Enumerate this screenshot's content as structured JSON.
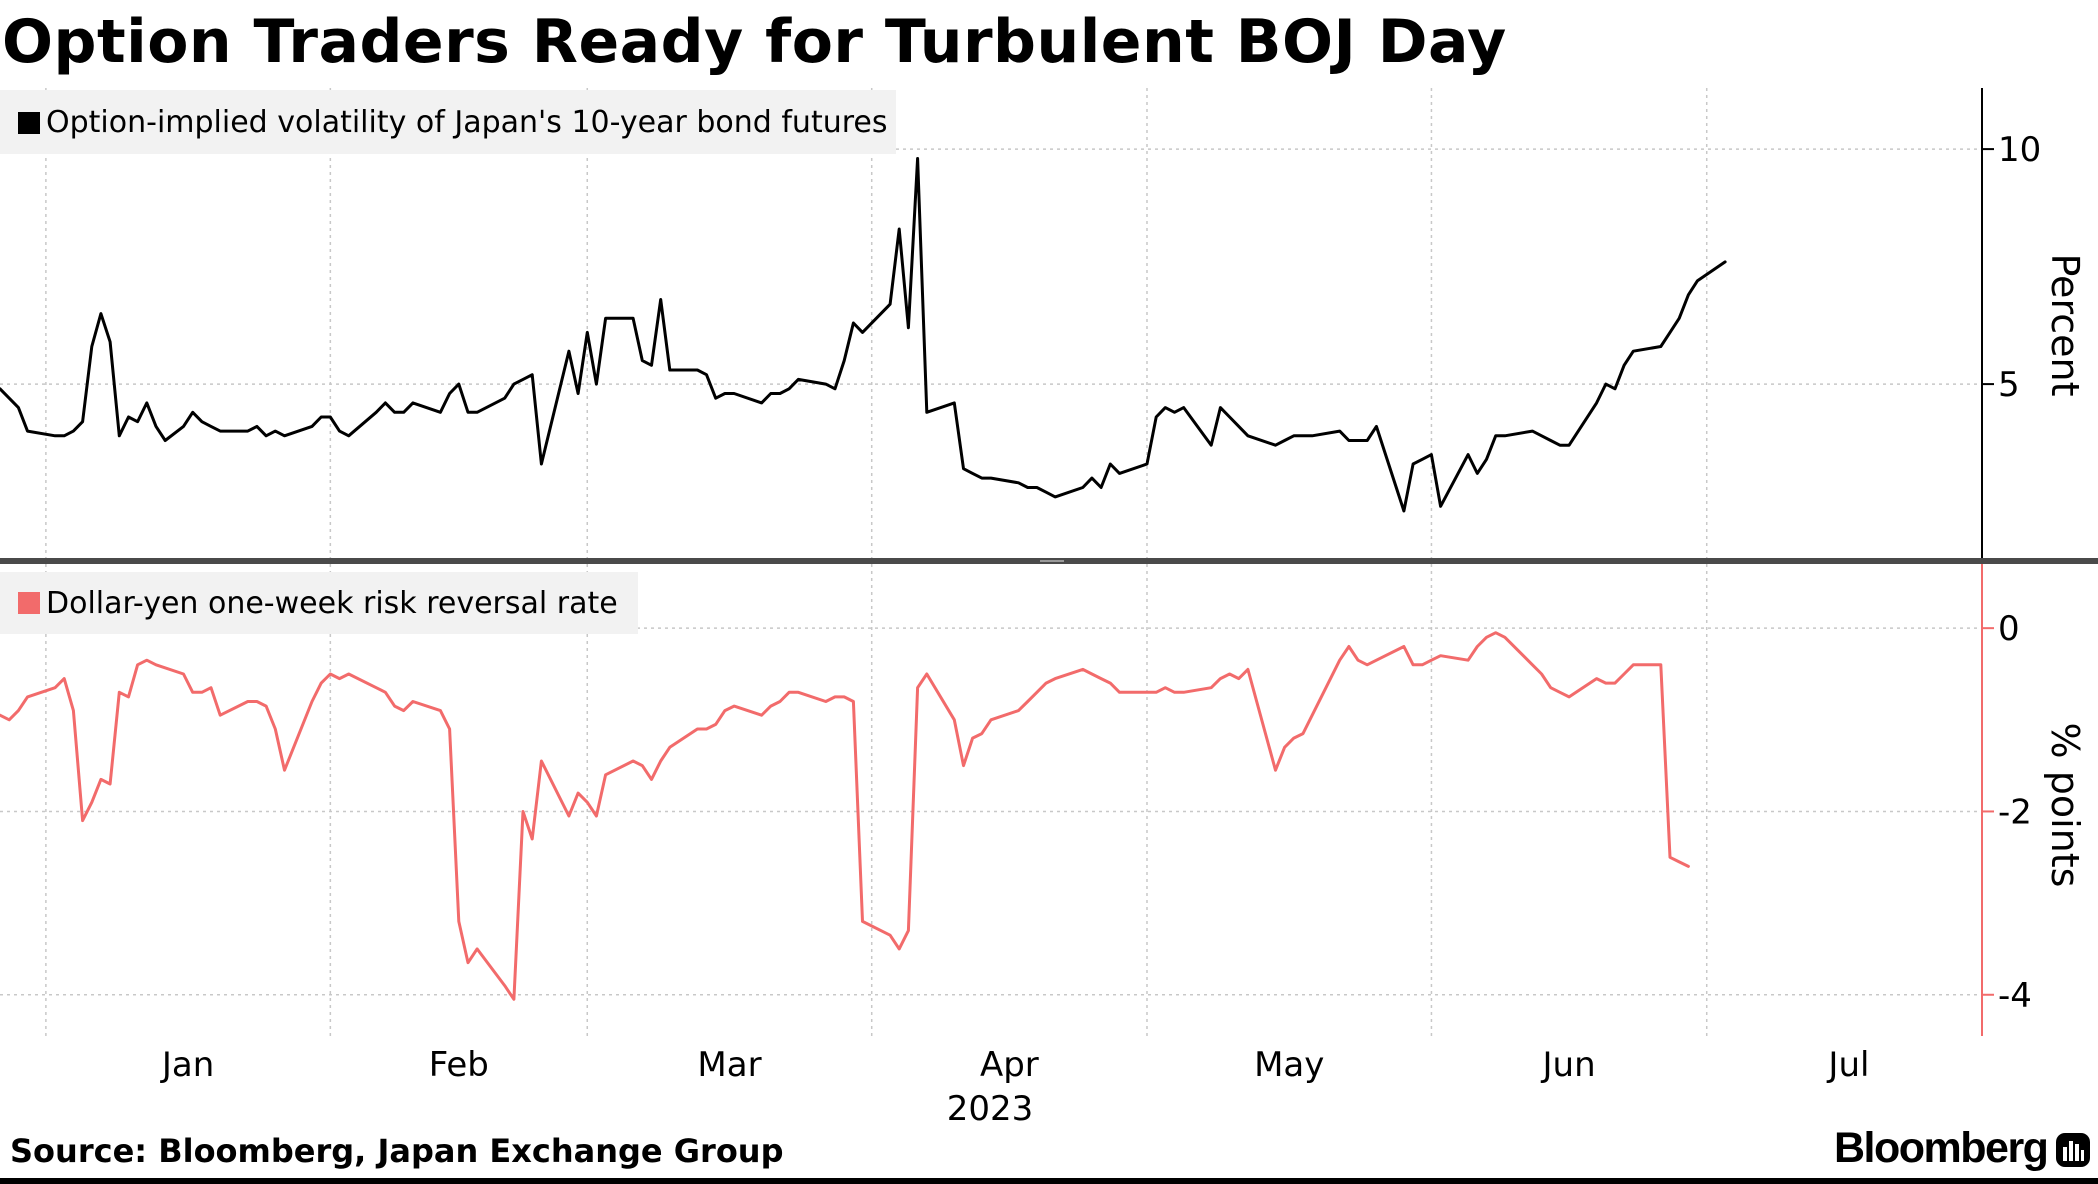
{
  "title": "Option Traders Ready for Turbulent BOJ Day",
  "source": "Source: Bloomberg, Japan Exchange Group",
  "brand": "Bloomberg",
  "colors": {
    "series1": "#000000",
    "series2": "#f26b6b",
    "grid": "#c8c8c8",
    "legend_bg": "#f2f2f2"
  },
  "chart_data": [
    {
      "type": "line",
      "series": [
        {
          "name": "Option-implied volatility of Japan's 10-year bond futures",
          "color": "#000000"
        }
      ],
      "ylabel": "Percent",
      "y_ticks": [
        5,
        10
      ],
      "ylim": [
        1.3,
        11.3
      ],
      "x_ticks": [
        "Jan",
        "Feb",
        "Mar",
        "Apr",
        "May",
        "Jun",
        "Jul"
      ],
      "x_year": "2023",
      "xlim": [
        "2022-12-27",
        "2023-07-31"
      ],
      "grid": true,
      "legend": "top-left",
      "points": [
        [
          "2022-12-27",
          4.9
        ],
        [
          "2022-12-28",
          4.7
        ],
        [
          "2022-12-29",
          4.5
        ],
        [
          "2022-12-30",
          4.0
        ],
        [
          "2023-01-02",
          3.9
        ],
        [
          "2023-01-03",
          3.9
        ],
        [
          "2023-01-04",
          4.0
        ],
        [
          "2023-01-05",
          4.2
        ],
        [
          "2023-01-06",
          5.8
        ],
        [
          "2023-01-07",
          6.5
        ],
        [
          "2023-01-08",
          5.9
        ],
        [
          "2023-01-09",
          3.9
        ],
        [
          "2023-01-10",
          4.3
        ],
        [
          "2023-01-11",
          4.2
        ],
        [
          "2023-01-12",
          4.6
        ],
        [
          "2023-01-13",
          4.1
        ],
        [
          "2023-01-14",
          3.8
        ],
        [
          "2023-01-16",
          4.1
        ],
        [
          "2023-01-17",
          4.4
        ],
        [
          "2023-01-18",
          4.2
        ],
        [
          "2023-01-19",
          4.1
        ],
        [
          "2023-01-20",
          4.0
        ],
        [
          "2023-01-23",
          4.0
        ],
        [
          "2023-01-24",
          4.1
        ],
        [
          "2023-01-25",
          3.9
        ],
        [
          "2023-01-26",
          4.0
        ],
        [
          "2023-01-27",
          3.9
        ],
        [
          "2023-01-30",
          4.1
        ],
        [
          "2023-01-31",
          4.3
        ],
        [
          "2023-02-01",
          4.3
        ],
        [
          "2023-02-02",
          4.0
        ],
        [
          "2023-02-03",
          3.9
        ],
        [
          "2023-02-06",
          4.4
        ],
        [
          "2023-02-07",
          4.6
        ],
        [
          "2023-02-08",
          4.4
        ],
        [
          "2023-02-09",
          4.4
        ],
        [
          "2023-02-10",
          4.6
        ],
        [
          "2023-02-13",
          4.4
        ],
        [
          "2023-02-14",
          4.8
        ],
        [
          "2023-02-15",
          5.0
        ],
        [
          "2023-02-16",
          4.4
        ],
        [
          "2023-02-17",
          4.4
        ],
        [
          "2023-02-20",
          4.7
        ],
        [
          "2023-02-21",
          5.0
        ],
        [
          "2023-02-22",
          5.1
        ],
        [
          "2023-02-23",
          5.2
        ],
        [
          "2023-02-24",
          3.3
        ],
        [
          "2023-02-27",
          5.7
        ],
        [
          "2023-02-28",
          4.8
        ],
        [
          "2023-03-01",
          6.1
        ],
        [
          "2023-03-02",
          5.0
        ],
        [
          "2023-03-03",
          6.4
        ],
        [
          "2023-03-06",
          6.4
        ],
        [
          "2023-03-07",
          5.5
        ],
        [
          "2023-03-08",
          5.4
        ],
        [
          "2023-03-09",
          6.8
        ],
        [
          "2023-03-10",
          5.3
        ],
        [
          "2023-03-13",
          5.3
        ],
        [
          "2023-03-14",
          5.2
        ],
        [
          "2023-03-15",
          4.7
        ],
        [
          "2023-03-16",
          4.8
        ],
        [
          "2023-03-17",
          4.8
        ],
        [
          "2023-03-20",
          4.6
        ],
        [
          "2023-03-21",
          4.8
        ],
        [
          "2023-03-22",
          4.8
        ],
        [
          "2023-03-23",
          4.9
        ],
        [
          "2023-03-24",
          5.1
        ],
        [
          "2023-03-27",
          5.0
        ],
        [
          "2023-03-28",
          4.9
        ],
        [
          "2023-03-29",
          5.5
        ],
        [
          "2023-03-30",
          6.3
        ],
        [
          "2023-03-31",
          6.1
        ],
        [
          "2023-04-03",
          6.7
        ],
        [
          "2023-04-04",
          8.3
        ],
        [
          "2023-04-05",
          6.2
        ],
        [
          "2023-04-06",
          9.8
        ],
        [
          "2023-04-07",
          4.4
        ],
        [
          "2023-04-10",
          4.6
        ],
        [
          "2023-04-11",
          3.2
        ],
        [
          "2023-04-12",
          3.1
        ],
        [
          "2023-04-13",
          3.0
        ],
        [
          "2023-04-14",
          3.0
        ],
        [
          "2023-04-17",
          2.9
        ],
        [
          "2023-04-18",
          2.8
        ],
        [
          "2023-04-19",
          2.8
        ],
        [
          "2023-04-20",
          2.7
        ],
        [
          "2023-04-21",
          2.6
        ],
        [
          "2023-04-24",
          2.8
        ],
        [
          "2023-04-25",
          3.0
        ],
        [
          "2023-04-26",
          2.8
        ],
        [
          "2023-04-27",
          3.3
        ],
        [
          "2023-04-28",
          3.1
        ],
        [
          "2023-05-01",
          3.3
        ],
        [
          "2023-05-02",
          4.3
        ],
        [
          "2023-05-03",
          4.5
        ],
        [
          "2023-05-04",
          4.4
        ],
        [
          "2023-05-05",
          4.5
        ],
        [
          "2023-05-08",
          3.7
        ],
        [
          "2023-05-09",
          4.5
        ],
        [
          "2023-05-10",
          4.3
        ],
        [
          "2023-05-11",
          4.1
        ],
        [
          "2023-05-12",
          3.9
        ],
        [
          "2023-05-15",
          3.7
        ],
        [
          "2023-05-16",
          3.8
        ],
        [
          "2023-05-17",
          3.9
        ],
        [
          "2023-05-18",
          3.9
        ],
        [
          "2023-05-19",
          3.9
        ],
        [
          "2023-05-22",
          4.0
        ],
        [
          "2023-05-23",
          3.8
        ],
        [
          "2023-05-24",
          3.8
        ],
        [
          "2023-05-25",
          3.8
        ],
        [
          "2023-05-26",
          4.1
        ],
        [
          "2023-05-29",
          2.3
        ],
        [
          "2023-05-30",
          3.3
        ],
        [
          "2023-05-31",
          3.4
        ],
        [
          "2023-06-01",
          3.5
        ],
        [
          "2023-06-02",
          2.4
        ],
        [
          "2023-06-05",
          3.5
        ],
        [
          "2023-06-06",
          3.1
        ],
        [
          "2023-06-07",
          3.4
        ],
        [
          "2023-06-08",
          3.9
        ],
        [
          "2023-06-09",
          3.9
        ],
        [
          "2023-06-12",
          4.0
        ],
        [
          "2023-06-13",
          3.9
        ],
        [
          "2023-06-14",
          3.8
        ],
        [
          "2023-06-15",
          3.7
        ],
        [
          "2023-06-16",
          3.7
        ],
        [
          "2023-06-19",
          4.6
        ],
        [
          "2023-06-20",
          5.0
        ],
        [
          "2023-06-21",
          4.9
        ],
        [
          "2023-06-22",
          5.4
        ],
        [
          "2023-06-23",
          5.7
        ],
        [
          "2023-06-26",
          5.8
        ],
        [
          "2023-06-27",
          6.1
        ],
        [
          "2023-06-28",
          6.4
        ],
        [
          "2023-06-29",
          6.9
        ],
        [
          "2023-06-30",
          7.2
        ],
        [
          "2023-07-03",
          7.6
        ]
      ]
    },
    {
      "type": "line",
      "series": [
        {
          "name": "Dollar-yen one-week risk reversal rate",
          "color": "#f26b6b"
        }
      ],
      "ylabel": "% points",
      "y_ticks": [
        0,
        -2,
        -4
      ],
      "ylim": [
        -4.45,
        0.7
      ],
      "x_ticks": [
        "Jan",
        "Feb",
        "Mar",
        "Apr",
        "May",
        "Jun",
        "Jul"
      ],
      "x_year": "2023",
      "xlim": [
        "2022-12-27",
        "2023-07-31"
      ],
      "grid": true,
      "legend": "top-left",
      "points": [
        [
          "2022-12-27",
          -0.95
        ],
        [
          "2022-12-28",
          -1.0
        ],
        [
          "2022-12-29",
          -0.9
        ],
        [
          "2022-12-30",
          -0.75
        ],
        [
          "2023-01-02",
          -0.65
        ],
        [
          "2023-01-03",
          -0.55
        ],
        [
          "2023-01-04",
          -0.9
        ],
        [
          "2023-01-05",
          -2.1
        ],
        [
          "2023-01-06",
          -1.9
        ],
        [
          "2023-01-07",
          -1.65
        ],
        [
          "2023-01-08",
          -1.7
        ],
        [
          "2023-01-09",
          -0.7
        ],
        [
          "2023-01-10",
          -0.75
        ],
        [
          "2023-01-11",
          -0.4
        ],
        [
          "2023-01-12",
          -0.35
        ],
        [
          "2023-01-13",
          -0.4
        ],
        [
          "2023-01-16",
          -0.5
        ],
        [
          "2023-01-17",
          -0.7
        ],
        [
          "2023-01-18",
          -0.7
        ],
        [
          "2023-01-19",
          -0.65
        ],
        [
          "2023-01-20",
          -0.95
        ],
        [
          "2023-01-23",
          -0.8
        ],
        [
          "2023-01-24",
          -0.8
        ],
        [
          "2023-01-25",
          -0.85
        ],
        [
          "2023-01-26",
          -1.1
        ],
        [
          "2023-01-27",
          -1.55
        ],
        [
          "2023-01-30",
          -0.8
        ],
        [
          "2023-01-31",
          -0.6
        ],
        [
          "2023-02-01",
          -0.5
        ],
        [
          "2023-02-02",
          -0.55
        ],
        [
          "2023-02-03",
          -0.5
        ],
        [
          "2023-02-06",
          -0.65
        ],
        [
          "2023-02-07",
          -0.7
        ],
        [
          "2023-02-08",
          -0.85
        ],
        [
          "2023-02-09",
          -0.9
        ],
        [
          "2023-02-10",
          -0.8
        ],
        [
          "2023-02-13",
          -0.9
        ],
        [
          "2023-02-14",
          -1.1
        ],
        [
          "2023-02-15",
          -3.2
        ],
        [
          "2023-02-16",
          -3.65
        ],
        [
          "2023-02-17",
          -3.5
        ],
        [
          "2023-02-20",
          -3.9
        ],
        [
          "2023-02-21",
          -4.05
        ],
        [
          "2023-02-22",
          -2.0
        ],
        [
          "2023-02-23",
          -2.3
        ],
        [
          "2023-02-24",
          -1.45
        ],
        [
          "2023-02-27",
          -2.05
        ],
        [
          "2023-02-28",
          -1.8
        ],
        [
          "2023-03-01",
          -1.9
        ],
        [
          "2023-03-02",
          -2.05
        ],
        [
          "2023-03-03",
          -1.6
        ],
        [
          "2023-03-06",
          -1.45
        ],
        [
          "2023-03-07",
          -1.5
        ],
        [
          "2023-03-08",
          -1.65
        ],
        [
          "2023-03-09",
          -1.45
        ],
        [
          "2023-03-10",
          -1.3
        ],
        [
          "2023-03-13",
          -1.1
        ],
        [
          "2023-03-14",
          -1.1
        ],
        [
          "2023-03-15",
          -1.05
        ],
        [
          "2023-03-16",
          -0.9
        ],
        [
          "2023-03-17",
          -0.85
        ],
        [
          "2023-03-20",
          -0.95
        ],
        [
          "2023-03-21",
          -0.85
        ],
        [
          "2023-03-22",
          -0.8
        ],
        [
          "2023-03-23",
          -0.7
        ],
        [
          "2023-03-24",
          -0.7
        ],
        [
          "2023-03-27",
          -0.8
        ],
        [
          "2023-03-28",
          -0.75
        ],
        [
          "2023-03-29",
          -0.75
        ],
        [
          "2023-03-30",
          -0.8
        ],
        [
          "2023-03-31",
          -3.2
        ],
        [
          "2023-04-03",
          -3.35
        ],
        [
          "2023-04-04",
          -3.5
        ],
        [
          "2023-04-05",
          -3.3
        ],
        [
          "2023-04-06",
          -0.65
        ],
        [
          "2023-04-07",
          -0.5
        ],
        [
          "2023-04-10",
          -1.0
        ],
        [
          "2023-04-11",
          -1.5
        ],
        [
          "2023-04-12",
          -1.2
        ],
        [
          "2023-04-13",
          -1.15
        ],
        [
          "2023-04-14",
          -1.0
        ],
        [
          "2023-04-17",
          -0.9
        ],
        [
          "2023-04-18",
          -0.8
        ],
        [
          "2023-04-19",
          -0.7
        ],
        [
          "2023-04-20",
          -0.6
        ],
        [
          "2023-04-21",
          -0.55
        ],
        [
          "2023-04-24",
          -0.45
        ],
        [
          "2023-04-25",
          -0.5
        ],
        [
          "2023-04-26",
          -0.55
        ],
        [
          "2023-04-27",
          -0.6
        ],
        [
          "2023-04-28",
          -0.7
        ],
        [
          "2023-05-01",
          -0.7
        ],
        [
          "2023-05-02",
          -0.7
        ],
        [
          "2023-05-03",
          -0.65
        ],
        [
          "2023-05-04",
          -0.7
        ],
        [
          "2023-05-05",
          -0.7
        ],
        [
          "2023-05-08",
          -0.65
        ],
        [
          "2023-05-09",
          -0.55
        ],
        [
          "2023-05-10",
          -0.5
        ],
        [
          "2023-05-11",
          -0.55
        ],
        [
          "2023-05-12",
          -0.45
        ],
        [
          "2023-05-15",
          -1.55
        ],
        [
          "2023-05-16",
          -1.3
        ],
        [
          "2023-05-17",
          -1.2
        ],
        [
          "2023-05-18",
          -1.15
        ],
        [
          "2023-05-19",
          -0.95
        ],
        [
          "2023-05-22",
          -0.35
        ],
        [
          "2023-05-23",
          -0.2
        ],
        [
          "2023-05-24",
          -0.35
        ],
        [
          "2023-05-25",
          -0.4
        ],
        [
          "2023-05-26",
          -0.35
        ],
        [
          "2023-05-29",
          -0.2
        ],
        [
          "2023-05-30",
          -0.4
        ],
        [
          "2023-05-31",
          -0.4
        ],
        [
          "2023-06-01",
          -0.35
        ],
        [
          "2023-06-02",
          -0.3
        ],
        [
          "2023-06-05",
          -0.35
        ],
        [
          "2023-06-06",
          -0.2
        ],
        [
          "2023-06-07",
          -0.1
        ],
        [
          "2023-06-08",
          -0.05
        ],
        [
          "2023-06-09",
          -0.1
        ],
        [
          "2023-06-12",
          -0.4
        ],
        [
          "2023-06-13",
          -0.5
        ],
        [
          "2023-06-14",
          -0.65
        ],
        [
          "2023-06-15",
          -0.7
        ],
        [
          "2023-06-16",
          -0.75
        ],
        [
          "2023-06-19",
          -0.55
        ],
        [
          "2023-06-20",
          -0.6
        ],
        [
          "2023-06-21",
          -0.6
        ],
        [
          "2023-06-22",
          -0.5
        ],
        [
          "2023-06-23",
          -0.4
        ],
        [
          "2023-06-26",
          -0.4
        ],
        [
          "2023-06-27",
          -2.5
        ],
        [
          "2023-06-28",
          -2.55
        ],
        [
          "2023-06-29",
          -2.6
        ]
      ]
    }
  ]
}
